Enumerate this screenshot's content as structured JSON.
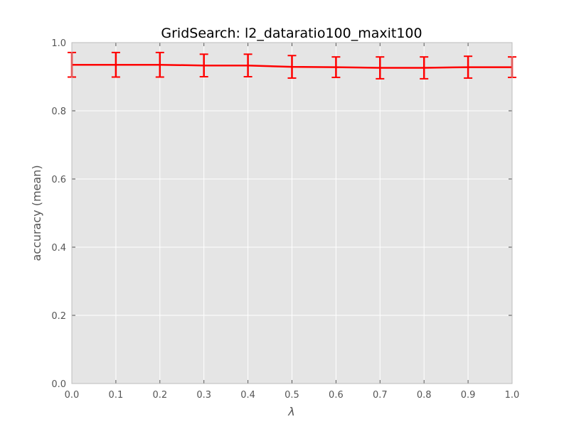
{
  "chart_data": {
    "type": "line",
    "title": "GridSearch: l2_dataratio100_maxit100",
    "xlabel": "λ",
    "ylabel": "accuracy (mean)",
    "xlim": [
      0.0,
      1.0
    ],
    "ylim": [
      0.0,
      1.0
    ],
    "x_ticks": [
      "0.0",
      "0.1",
      "0.2",
      "0.3",
      "0.4",
      "0.5",
      "0.6",
      "0.7",
      "0.8",
      "0.9",
      "1.0"
    ],
    "y_ticks": [
      "0.0",
      "0.2",
      "0.4",
      "0.6",
      "0.8",
      "1.0"
    ],
    "grid": true,
    "background_color": "#e5e5e5",
    "series": [
      {
        "color": "#ff0000",
        "x": [
          0.0,
          0.1,
          0.2,
          0.3,
          0.4,
          0.5,
          0.6,
          0.7,
          0.8,
          0.9,
          1.0
        ],
        "y": [
          0.935,
          0.935,
          0.935,
          0.933,
          0.933,
          0.929,
          0.928,
          0.926,
          0.926,
          0.928,
          0.928
        ],
        "yerr": [
          0.036,
          0.036,
          0.036,
          0.033,
          0.033,
          0.033,
          0.03,
          0.032,
          0.032,
          0.032,
          0.03
        ]
      }
    ]
  }
}
